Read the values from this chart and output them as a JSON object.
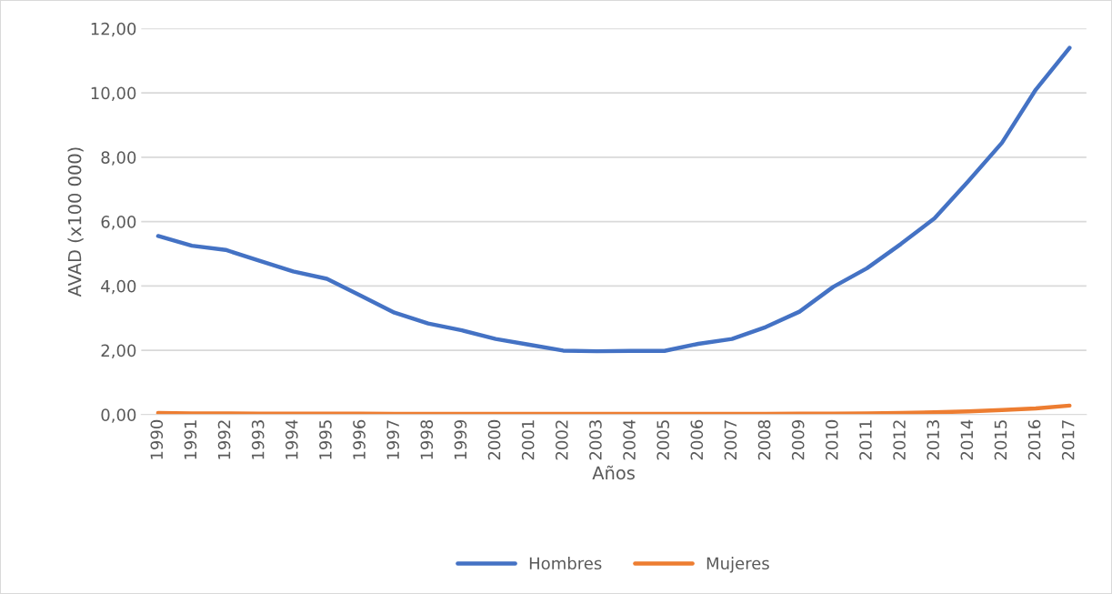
{
  "chart_data": {
    "type": "line",
    "xlabel": "Años",
    "ylabel": "AVAD (x100 000)",
    "categories": [
      "1990",
      "1991",
      "1992",
      "1993",
      "1994",
      "1995",
      "1996",
      "1997",
      "1998",
      "1999",
      "2000",
      "2001",
      "2002",
      "2003",
      "2004",
      "2005",
      "2006",
      "2007",
      "2008",
      "2009",
      "2010",
      "2011",
      "2012",
      "2013",
      "2014",
      "2015",
      "2016",
      "2017"
    ],
    "series": [
      {
        "name": "Hombres",
        "color": "#4472c4",
        "values": [
          5.55,
          5.25,
          5.12,
          4.78,
          4.45,
          4.22,
          3.7,
          3.17,
          2.83,
          2.62,
          2.35,
          2.17,
          1.99,
          1.97,
          1.98,
          1.98,
          2.2,
          2.35,
          2.72,
          3.2,
          3.97,
          4.55,
          5.3,
          6.1,
          7.25,
          8.45,
          10.1,
          11.4
        ]
      },
      {
        "name": "Mujeres",
        "color": "#ed7d31",
        "values": [
          0.05,
          0.04,
          0.04,
          0.03,
          0.03,
          0.03,
          0.03,
          0.02,
          0.02,
          0.02,
          0.02,
          0.02,
          0.02,
          0.02,
          0.02,
          0.02,
          0.02,
          0.02,
          0.02,
          0.03,
          0.03,
          0.04,
          0.05,
          0.07,
          0.1,
          0.14,
          0.19,
          0.28
        ]
      }
    ],
    "ylim": [
      0,
      12
    ],
    "yticks": [
      {
        "value": 0,
        "label": "0,00"
      },
      {
        "value": 2,
        "label": "2,00"
      },
      {
        "value": 4,
        "label": "4,00"
      },
      {
        "value": 6,
        "label": "6,00"
      },
      {
        "value": 8,
        "label": "8,00"
      },
      {
        "value": 10,
        "label": "10,00"
      },
      {
        "value": 12,
        "label": "12,00"
      }
    ],
    "grid": "y",
    "legend": "bottom",
    "marker": "none",
    "line_style": "solid"
  }
}
